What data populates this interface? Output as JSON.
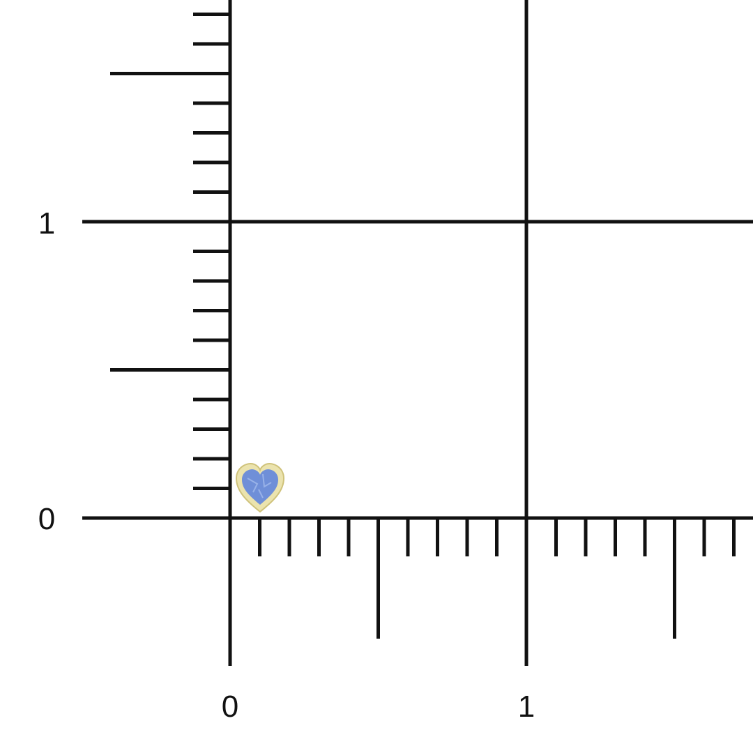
{
  "scale": {
    "unit_labels_y": [
      "0",
      "1"
    ],
    "unit_labels_x": [
      "0",
      "1"
    ],
    "minor_divisions_per_unit": 10
  },
  "product": {
    "icon": "heart-gemstone-stud",
    "stone_color": "#6f8fd8",
    "metal_color": "#e8e0a8"
  }
}
